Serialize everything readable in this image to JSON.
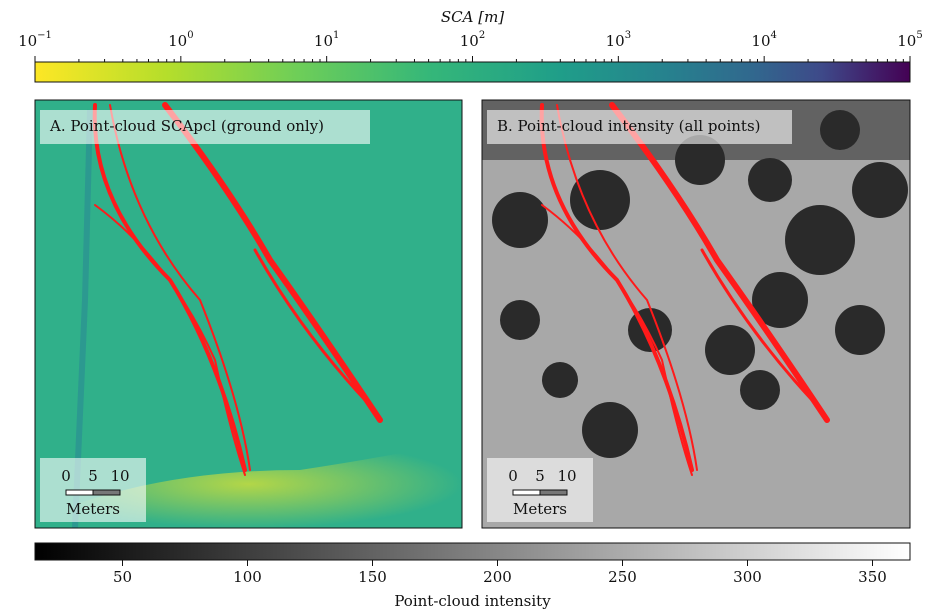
{
  "chart_data": [
    {
      "type": "colorbar",
      "label": "SCA [m]",
      "log": true,
      "colormap": "viridis_r",
      "xlim": [
        0.1,
        100000
      ],
      "xticks": [
        {
          "value": 0.1,
          "label": "10−1"
        },
        {
          "value": 1,
          "label": "100"
        },
        {
          "value": 10,
          "label": "101"
        },
        {
          "value": 100,
          "label": "102"
        },
        {
          "value": 1000,
          "label": "103"
        },
        {
          "value": 10000,
          "label": "104"
        },
        {
          "value": 100000,
          "label": "105"
        }
      ]
    },
    {
      "type": "colorbar",
      "label": "Point-cloud intensity",
      "log": false,
      "colormap": "gray",
      "xlim": [
        15,
        365
      ],
      "xticks": [
        50,
        100,
        150,
        200,
        250,
        300,
        350
      ]
    }
  ],
  "panels": [
    {
      "title": "A. Point-cloud SCApcl (ground only)",
      "scale_bar": {
        "ticks": [
          0,
          5,
          10
        ],
        "label": "Meters"
      }
    },
    {
      "title": "B. Point-cloud intensity (all points)",
      "scale_bar": {
        "ticks": [
          0,
          5,
          10
        ],
        "label": "Meters"
      }
    }
  ]
}
